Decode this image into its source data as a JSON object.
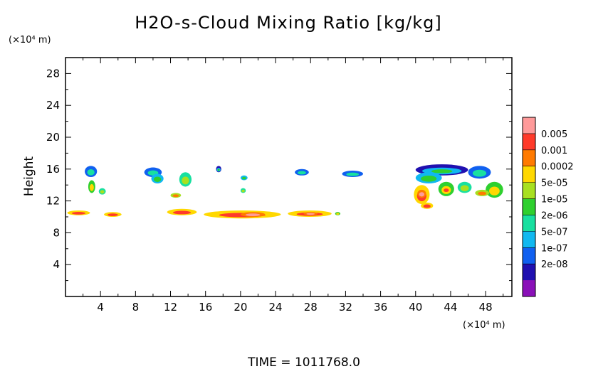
{
  "chart_data": {
    "type": "heatmap",
    "title": "H2O-s-Cloud Mixing Ratio [kg/kg]",
    "ylabel": "Height",
    "y_unit": "(×10⁴ m)",
    "x_unit": "(×10⁴ m)",
    "footer": "TIME  =  1011768.0",
    "xlim": [
      0,
      51
    ],
    "ylim": [
      0,
      30
    ],
    "x_ticks": [
      4,
      8,
      12,
      16,
      20,
      24,
      28,
      32,
      36,
      40,
      44,
      48
    ],
    "y_ticks": [
      4,
      8,
      12,
      16,
      20,
      24,
      28
    ],
    "grid": false,
    "legend": {
      "placement": "right",
      "levels": [
        "0.005",
        "0.001",
        "0.0002",
        "5e-05",
        "1e-05",
        "2e-06",
        "5e-07",
        "1e-07",
        "2e-08"
      ],
      "colors": [
        "#ff9a9a",
        "#ff3a2a",
        "#ff7a00",
        "#ffd800",
        "#a8e020",
        "#2ed02e",
        "#18e0a0",
        "#10b8f0",
        "#1060f0",
        "#2010b0",
        "#8a10b8"
      ]
    },
    "regions": [
      {
        "x": [
          2.2,
          3.6
        ],
        "y": [
          15.0,
          16.4
        ],
        "level": 1
      },
      {
        "x": [
          2.6,
          3.4
        ],
        "y": [
          13.0,
          14.6
        ],
        "level": 4
      },
      {
        "x": [
          3.8,
          4.6
        ],
        "y": [
          12.8,
          13.6
        ],
        "level": 3
      },
      {
        "x": [
          9.0,
          11.0
        ],
        "y": [
          15.0,
          16.2
        ],
        "level": 1
      },
      {
        "x": [
          9.8,
          11.2
        ],
        "y": [
          14.2,
          15.4
        ],
        "level": 2
      },
      {
        "x": [
          13.0,
          14.4
        ],
        "y": [
          13.8,
          15.6
        ],
        "level": 3
      },
      {
        "x": [
          12.0,
          13.2
        ],
        "y": [
          12.4,
          13.0
        ],
        "level": 5
      },
      {
        "x": [
          17.2,
          17.8
        ],
        "y": [
          15.6,
          16.4
        ],
        "level": 0
      },
      {
        "x": [
          20.0,
          20.8
        ],
        "y": [
          14.6,
          15.2
        ],
        "level": 2
      },
      {
        "x": [
          20.0,
          20.6
        ],
        "y": [
          13.0,
          13.6
        ],
        "level": 3
      },
      {
        "x": [
          26.2,
          27.8
        ],
        "y": [
          15.2,
          16.0
        ],
        "level": 1
      },
      {
        "x": [
          31.6,
          34.0
        ],
        "y": [
          15.0,
          15.8
        ],
        "level": 1
      },
      {
        "x": [
          40.0,
          46.0
        ],
        "y": [
          15.2,
          16.6
        ],
        "level": 0
      },
      {
        "x": [
          40.0,
          43.0
        ],
        "y": [
          14.2,
          15.6
        ],
        "level": 2
      },
      {
        "x": [
          46.0,
          48.6
        ],
        "y": [
          14.8,
          16.4
        ],
        "level": 1
      },
      {
        "x": [
          39.8,
          41.6
        ],
        "y": [
          11.6,
          14.0
        ],
        "level": 6
      },
      {
        "x": [
          40.2,
          41.2
        ],
        "y": [
          12.4,
          13.4
        ],
        "level": 7
      },
      {
        "x": [
          40.6,
          42.0
        ],
        "y": [
          11.0,
          11.8
        ],
        "level": 6
      },
      {
        "x": [
          42.6,
          44.4
        ],
        "y": [
          12.6,
          14.4
        ],
        "level": 4
      },
      {
        "x": [
          43.0,
          44.0
        ],
        "y": [
          13.0,
          13.8
        ],
        "level": 6
      },
      {
        "x": [
          44.8,
          46.4
        ],
        "y": [
          13.0,
          14.4
        ],
        "level": 3
      },
      {
        "x": [
          48.0,
          50.0
        ],
        "y": [
          12.4,
          14.4
        ],
        "level": 4
      },
      {
        "x": [
          46.8,
          48.4
        ],
        "y": [
          12.6,
          13.4
        ],
        "level": 5
      },
      {
        "x": [
          0.2,
          2.8
        ],
        "y": [
          10.2,
          10.8
        ],
        "level": 6
      },
      {
        "x": [
          4.4,
          6.4
        ],
        "y": [
          10.0,
          10.6
        ],
        "level": 6
      },
      {
        "x": [
          11.6,
          15.0
        ],
        "y": [
          10.2,
          11.0
        ],
        "level": 6
      },
      {
        "x": [
          15.8,
          24.6
        ],
        "y": [
          9.8,
          10.8
        ],
        "level": 6
      },
      {
        "x": [
          20.0,
          22.8
        ],
        "y": [
          10.0,
          10.6
        ],
        "level": 7
      },
      {
        "x": [
          25.4,
          30.4
        ],
        "y": [
          10.0,
          10.8
        ],
        "level": 6
      },
      {
        "x": [
          27.2,
          28.8
        ],
        "y": [
          10.2,
          10.6
        ],
        "level": 7
      },
      {
        "x": [
          30.8,
          31.4
        ],
        "y": [
          10.2,
          10.6
        ],
        "level": 4
      }
    ]
  }
}
